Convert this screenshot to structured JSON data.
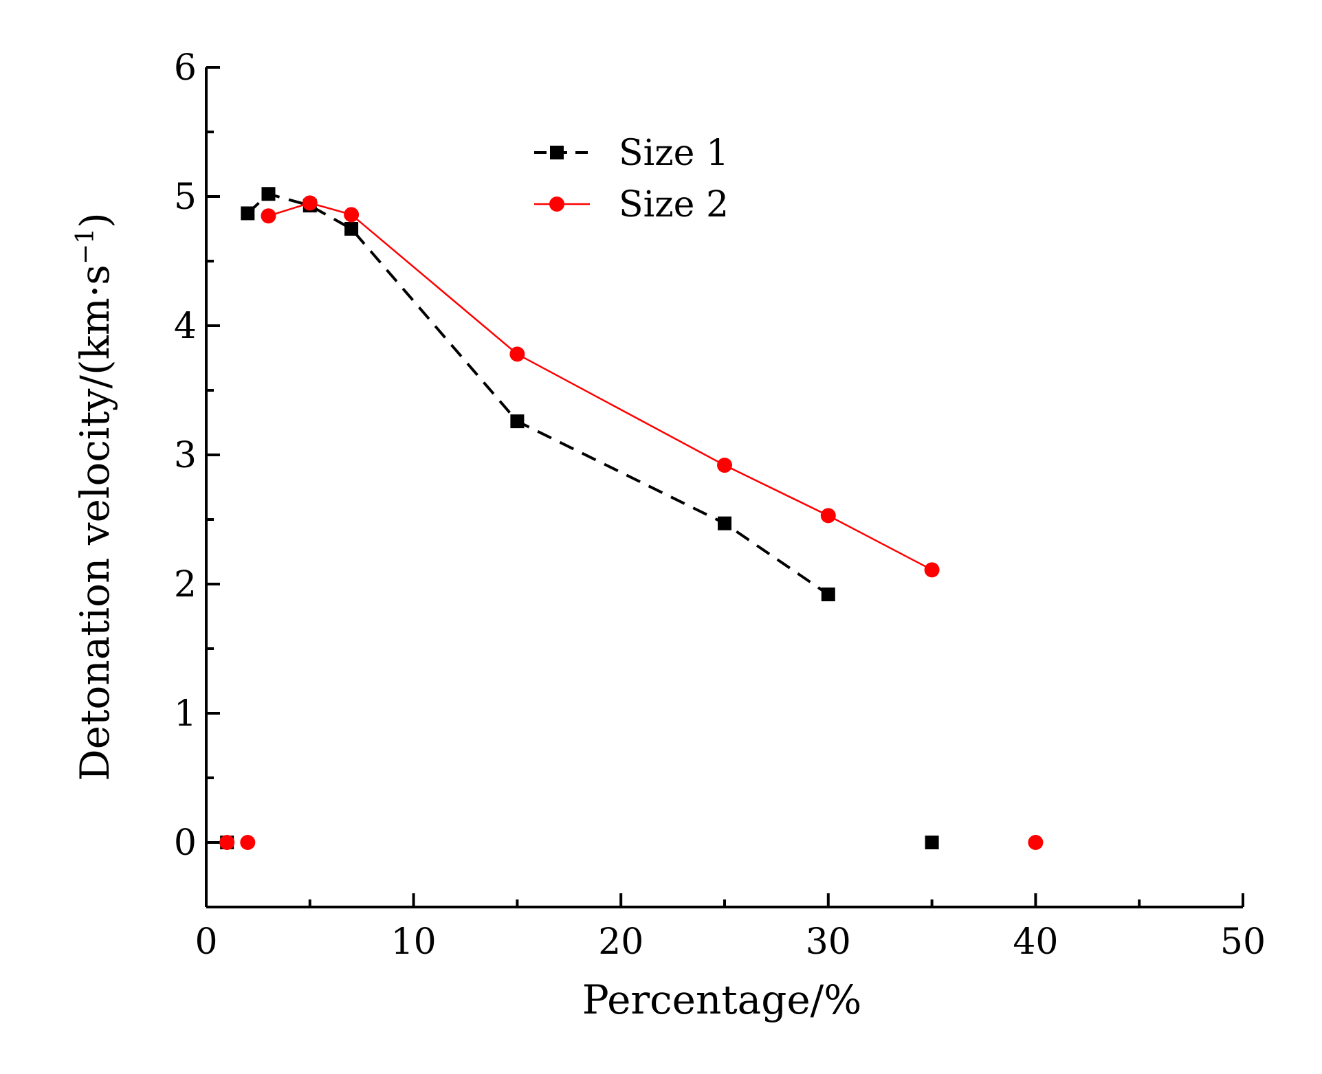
{
  "chart_data": {
    "type": "line",
    "title": "",
    "xlabel": "Percentage/%",
    "ylabel_main": "Detonation velocity/(km·s",
    "ylabel_sup": "−1",
    "ylabel_close": ")",
    "xlim": [
      0,
      50
    ],
    "ylim": [
      -0.5,
      6
    ],
    "xticks": [
      0,
      10,
      20,
      30,
      40,
      50
    ],
    "yticks": [
      0,
      1,
      2,
      3,
      4,
      5,
      6
    ],
    "legend_position": "top-center",
    "series": [
      {
        "name": "Size 1",
        "color": "#000000",
        "line_style": "dashed",
        "marker": "square",
        "connected": [
          [
            2,
            4.87
          ],
          [
            3,
            5.02
          ],
          [
            5,
            4.93
          ],
          [
            7,
            4.75
          ],
          [
            15,
            3.26
          ],
          [
            25,
            2.47
          ],
          [
            30,
            1.92
          ]
        ],
        "isolated": [
          [
            1,
            0
          ],
          [
            35,
            0
          ]
        ]
      },
      {
        "name": "Size 2",
        "color": "#ff0000",
        "line_style": "solid",
        "marker": "circle",
        "connected": [
          [
            3,
            4.85
          ],
          [
            5,
            4.95
          ],
          [
            7,
            4.86
          ],
          [
            15,
            3.78
          ],
          [
            25,
            2.92
          ],
          [
            30,
            2.53
          ],
          [
            35,
            2.11
          ]
        ],
        "isolated": [
          [
            1,
            0
          ],
          [
            2,
            0
          ],
          [
            40,
            0
          ]
        ]
      }
    ]
  }
}
